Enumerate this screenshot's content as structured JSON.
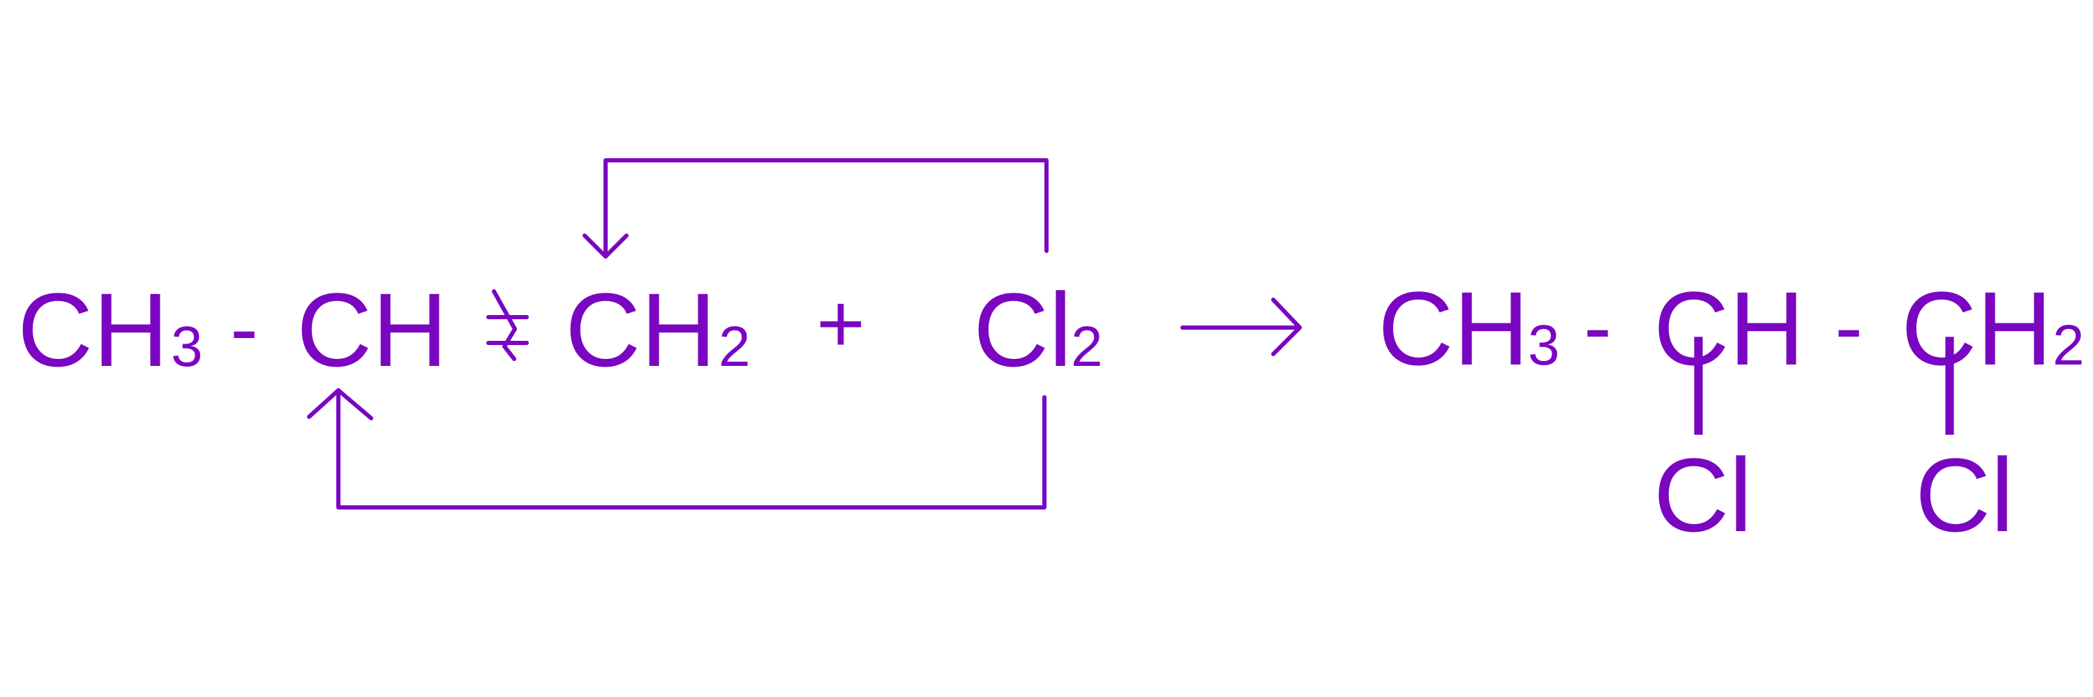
{
  "theme": {
    "color": "#7a06c1",
    "background": "#ffffff"
  },
  "reactants": {
    "ch3": {
      "main": "CH",
      "sub": "3"
    },
    "dash1": "-",
    "ch": "CH",
    "double_bond_symbol": "=",
    "ch2": {
      "main": "CH",
      "sub": "2"
    },
    "plus": "+",
    "cl2": {
      "main": "Cl",
      "sub": "2"
    }
  },
  "product": {
    "ch3": {
      "main": "CH",
      "sub": "3"
    },
    "dash1": "-",
    "ch": "CH",
    "dash2": "-",
    "ch2": {
      "main": "CH",
      "sub": "2"
    },
    "cl_left": "Cl",
    "cl_right": "Cl",
    "bond_left": "|",
    "bond_right": "|"
  },
  "icons": {
    "reaction_arrow": "right-arrow-icon",
    "upper_arrow": "curved-down-arrow-icon",
    "lower_arrow": "curved-up-arrow-icon",
    "bond_break": "bond-break-icon"
  }
}
